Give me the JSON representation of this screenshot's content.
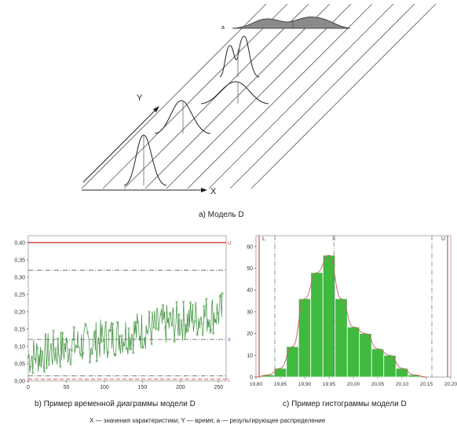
{
  "model_diagram": {
    "x_axis_label": "X",
    "y_axis_label": "Y",
    "resultant_label": "a",
    "caption": "а) Модель D"
  },
  "chart_data": [
    {
      "type": "line",
      "caption": "b) Пример временной диаграммы модели D",
      "xlim": [
        0,
        260
      ],
      "ylim": [
        0,
        0.42
      ],
      "x_ticks": [
        "0",
        "50",
        "100",
        "150",
        "200",
        "250"
      ],
      "y_ticks": [
        "0,00",
        "0,05",
        "0,10",
        "0,15",
        "0,20",
        "0,25",
        "0,30",
        "0,35",
        "0,40"
      ],
      "reference_lines": [
        {
          "label": "U",
          "value": 0.4,
          "color": "#d23a3a",
          "style": "solid"
        },
        {
          "label": "",
          "value": 0.32,
          "color": "#555555",
          "style": "dashdot"
        },
        {
          "label": "X",
          "value": 0.12,
          "color": "#555555",
          "style": "dashdot"
        },
        {
          "label": "",
          "value": 0.015,
          "color": "#555555",
          "style": "dashdot"
        },
        {
          "label": "L",
          "value": 0.005,
          "color": "#d23a3a",
          "style": "dashed"
        }
      ],
      "series_color": "#3a8f3a"
    },
    {
      "type": "bar",
      "caption": "c) Пример гистограммы модели D",
      "xlim": [
        19.8,
        20.2
      ],
      "ylim": [
        0,
        65
      ],
      "x_ticks": [
        "19,80",
        "19,85",
        "19,90",
        "19,95",
        "20,00",
        "20,05",
        "20,10",
        "20,15",
        "20,20"
      ],
      "y_ticks": [
        "0",
        "10",
        "20",
        "30",
        "40",
        "50",
        "60"
      ],
      "bins": [
        {
          "x": 19.825,
          "value": 1
        },
        {
          "x": 19.85,
          "value": 4
        },
        {
          "x": 19.875,
          "value": 14
        },
        {
          "x": 19.9,
          "value": 36
        },
        {
          "x": 19.925,
          "value": 48
        },
        {
          "x": 19.95,
          "value": 56
        },
        {
          "x": 19.975,
          "value": 36
        },
        {
          "x": 20.0,
          "value": 23
        },
        {
          "x": 20.025,
          "value": 20
        },
        {
          "x": 20.05,
          "value": 13
        },
        {
          "x": 20.075,
          "value": 10
        },
        {
          "x": 20.1,
          "value": 4
        },
        {
          "x": 20.125,
          "value": 1
        }
      ],
      "bin_width": 0.025,
      "lower_limit": {
        "label": "L",
        "value": 19.8
      },
      "upper_limit": {
        "label": "U",
        "value": 20.2
      },
      "mean": {
        "label": "X̄",
        "value": 19.96
      },
      "bar_color": "#3fba3f",
      "curve_color": "#c86a6a"
    }
  ],
  "footer": "X — значения  характеристики; Y — время; а — результирующее распределение"
}
